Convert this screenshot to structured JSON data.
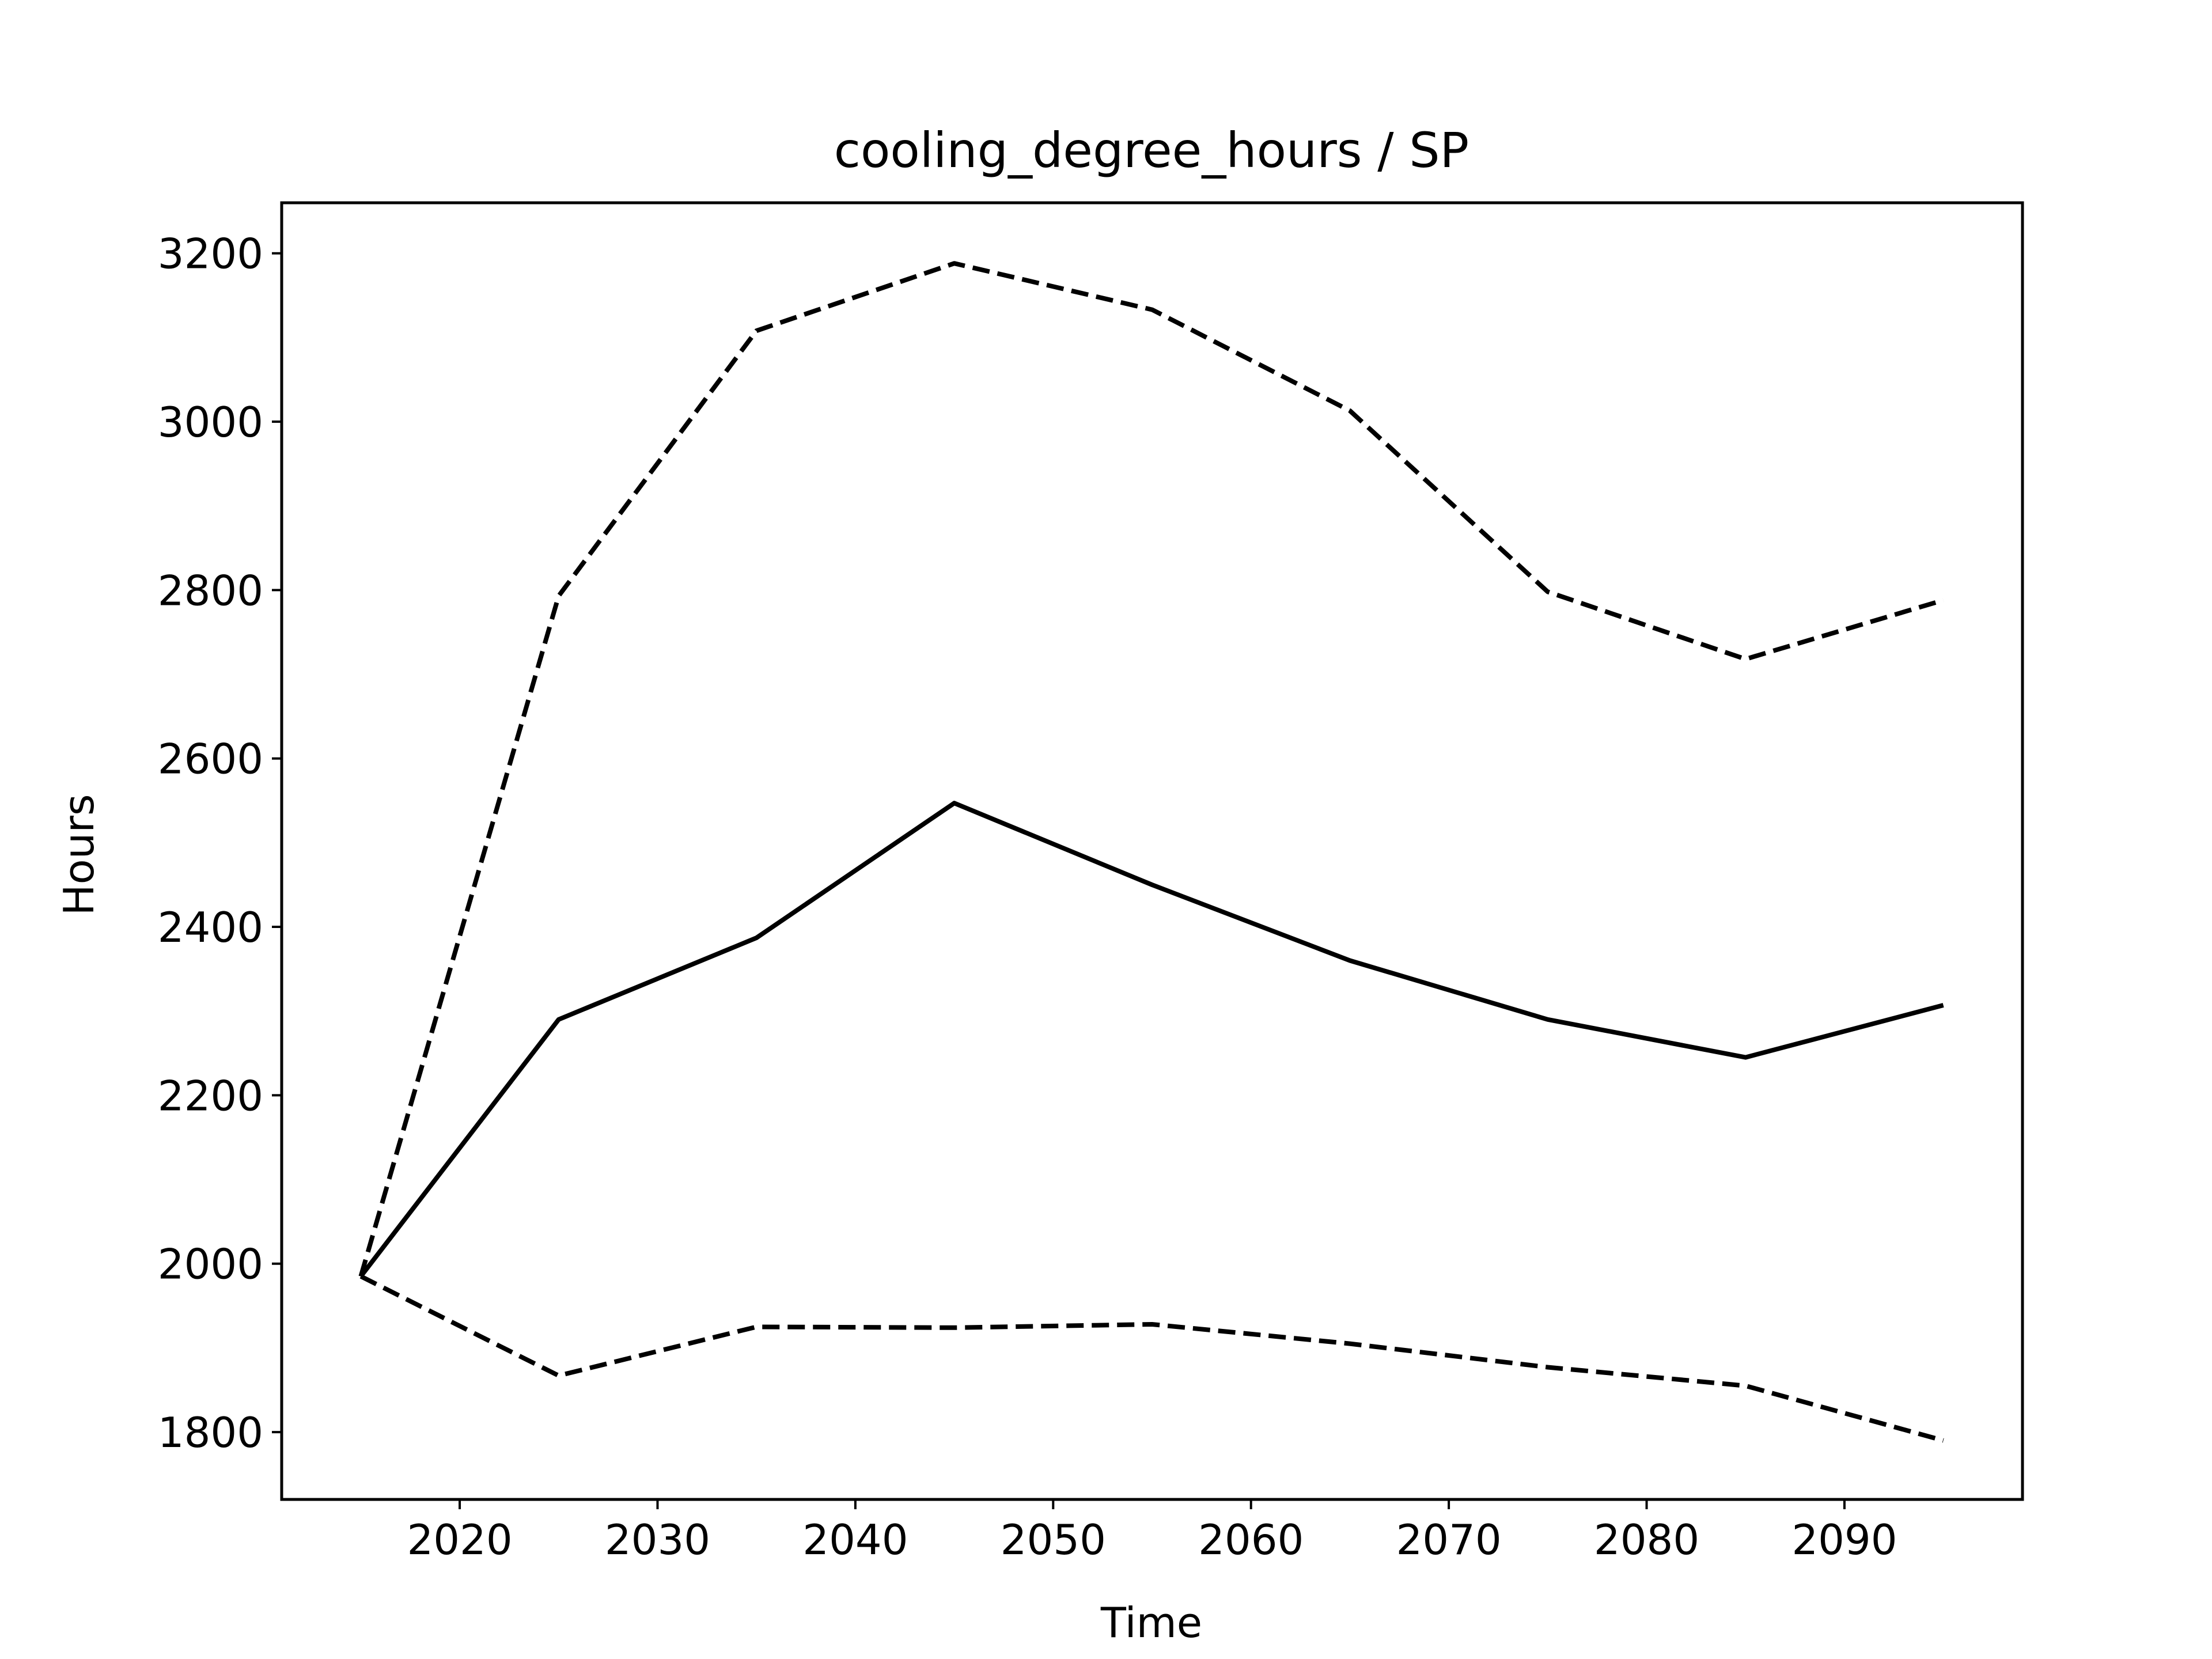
{
  "chart_data": {
    "type": "line",
    "title": "cooling_degree_hours / SP",
    "xlabel": "Time",
    "ylabel": "Hours",
    "xlim": [
      2011,
      2099
    ],
    "ylim": [
      1720,
      3260
    ],
    "xticks": [
      2020,
      2030,
      2040,
      2050,
      2060,
      2070,
      2080,
      2090
    ],
    "yticks": [
      1800,
      2000,
      2200,
      2400,
      2600,
      2800,
      3000,
      3200
    ],
    "grid": false,
    "legend": "none",
    "colors": {
      "line": "#000000",
      "axes": "#000000",
      "background": "#ffffff"
    },
    "x": [
      2015,
      2025,
      2035,
      2045,
      2055,
      2065,
      2075,
      2085,
      2095
    ],
    "series": [
      {
        "style": "dashed",
        "values": [
          1985,
          2793,
          3108,
          3188,
          3133,
          3013,
          2798,
          2718,
          2788
        ]
      },
      {
        "style": "solid",
        "values": [
          1985,
          2290,
          2387,
          2547,
          2450,
          2360,
          2290,
          2245,
          2307
        ]
      },
      {
        "style": "dashed",
        "values": [
          1985,
          1867,
          1925,
          1924,
          1928,
          1905,
          1877,
          1855,
          1790
        ]
      }
    ]
  }
}
